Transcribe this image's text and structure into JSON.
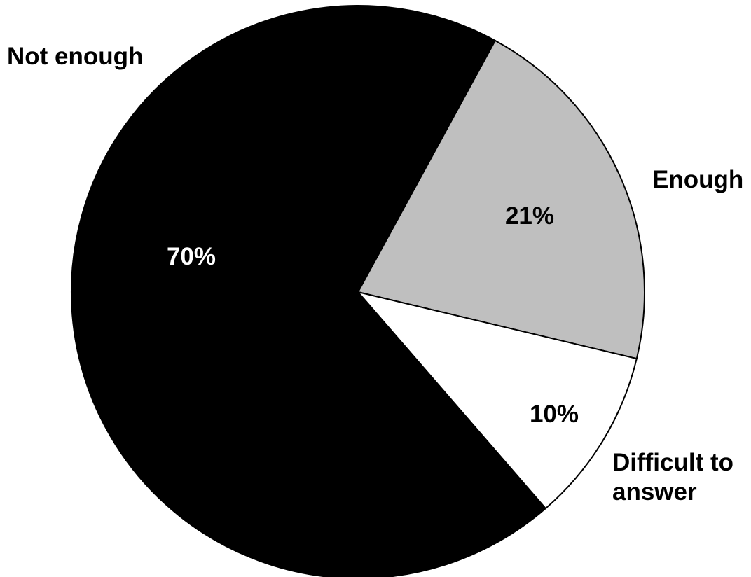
{
  "chart_data": {
    "type": "pie",
    "title": "",
    "slices": [
      {
        "category": "Enough",
        "value": 21,
        "label": "21%",
        "color": "#bfbfbf",
        "label_color": "#000000"
      },
      {
        "category": "Difficult to answer",
        "category_lines": [
          "Difficult to",
          "answer"
        ],
        "value": 10,
        "label": "10%",
        "color": "#ffffff",
        "label_color": "#000000"
      },
      {
        "category": "Not enough",
        "value": 70,
        "label": "70%",
        "color": "#000000",
        "label_color": "#ffffff"
      }
    ],
    "start_angle_deg": 28.6,
    "direction": "clockwise",
    "legend": "none"
  }
}
